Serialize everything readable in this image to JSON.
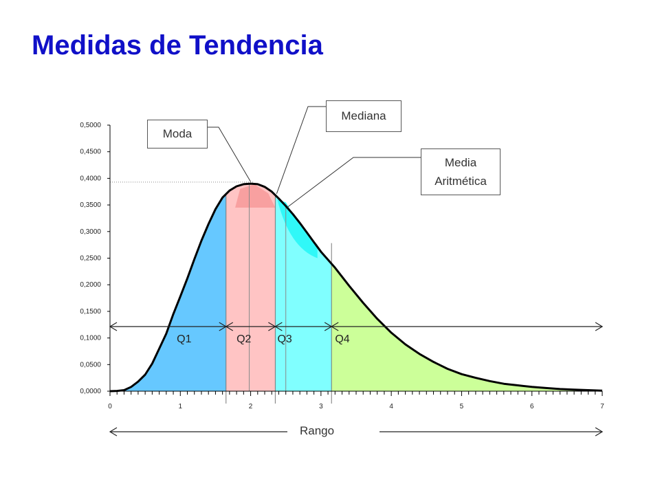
{
  "title": "Medidas de Tendencia",
  "chart_data": {
    "type": "area",
    "xlim": [
      0,
      7
    ],
    "ylim": [
      0,
      0.5
    ],
    "x_ticks": [
      "0",
      "1",
      "2",
      "3",
      "4",
      "5",
      "6",
      "7"
    ],
    "y_ticks": [
      "0,0000",
      "0,0500",
      "0,1000",
      "0,1500",
      "0,2000",
      "0,2500",
      "0,3000",
      "0,3500",
      "0,4000",
      "0,4500",
      "0,5000"
    ],
    "y_tick_values": [
      0,
      0.05,
      0.1,
      0.15,
      0.2,
      0.25,
      0.3,
      0.35,
      0.4,
      0.45,
      0.5
    ],
    "x_tick_values": [
      0,
      1,
      2,
      3,
      4,
      5,
      6,
      7
    ],
    "curve": {
      "x": [
        0,
        0.1,
        0.2,
        0.3,
        0.4,
        0.5,
        0.6,
        0.7,
        0.8,
        0.9,
        1.0,
        1.1,
        1.2,
        1.3,
        1.4,
        1.5,
        1.6,
        1.7,
        1.8,
        1.9,
        2.0,
        2.1,
        2.2,
        2.3,
        2.4,
        2.5,
        2.6,
        2.7,
        2.8,
        2.9,
        3.0,
        3.2,
        3.4,
        3.6,
        3.8,
        4.0,
        4.2,
        4.4,
        4.6,
        4.8,
        5.0,
        5.2,
        5.4,
        5.6,
        5.8,
        6.0,
        6.2,
        6.4,
        6.6,
        6.8,
        7.0
      ],
      "y": [
        0,
        0.0005,
        0.002,
        0.008,
        0.018,
        0.031,
        0.052,
        0.08,
        0.108,
        0.145,
        0.178,
        0.212,
        0.248,
        0.283,
        0.314,
        0.342,
        0.364,
        0.377,
        0.385,
        0.389,
        0.39,
        0.389,
        0.384,
        0.375,
        0.362,
        0.348,
        0.333,
        0.316,
        0.298,
        0.28,
        0.262,
        0.232,
        0.198,
        0.166,
        0.136,
        0.11,
        0.088,
        0.07,
        0.055,
        0.042,
        0.032,
        0.025,
        0.019,
        0.014,
        0.011,
        0.008,
        0.006,
        0.004,
        0.003,
        0.002,
        0.001
      ]
    },
    "quartiles": [
      {
        "name": "Q1",
        "from": 0,
        "to": 1.65,
        "color": "#66c8ff"
      },
      {
        "name": "Q2",
        "from": 1.65,
        "to": 2.35,
        "color": "#ffc4c4"
      },
      {
        "name": "Q3",
        "from": 2.35,
        "to": 3.15,
        "color": "#80ffff"
      },
      {
        "name": "Q4",
        "from": 3.15,
        "to": 7.0,
        "color": "#ccff99"
      }
    ],
    "moda": 1.98,
    "mediana": 2.35,
    "media": 2.5,
    "moda_y": 0.393,
    "annotations": {
      "moda": "Moda",
      "mediana": "Mediana",
      "media_line1": "Media",
      "media_line2": "Aritmética"
    },
    "rango_label": "Rango"
  }
}
